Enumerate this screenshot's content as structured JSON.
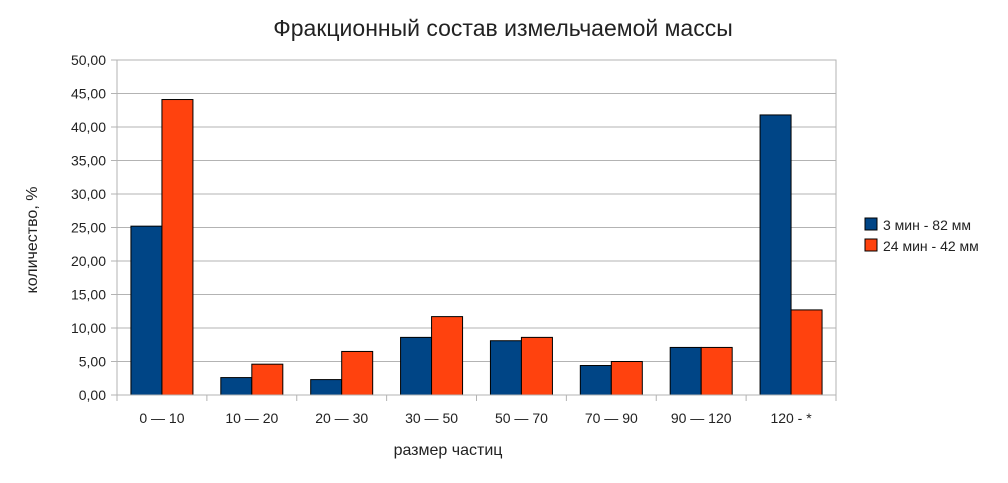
{
  "chart_data": {
    "type": "bar",
    "title": "Фракционный состав измельчаемой массы",
    "xlabel": "размер частиц",
    "ylabel": "количество, %",
    "categories": [
      "0 — 10",
      "10 — 20",
      "20 — 30",
      "30 — 50",
      "50 — 70",
      "70 — 90",
      "90 — 120",
      "120 - *"
    ],
    "ylim": [
      0,
      50
    ],
    "y_ticks": [
      "0,00",
      "5,00",
      "10,00",
      "15,00",
      "20,00",
      "25,00",
      "30,00",
      "35,00",
      "40,00",
      "45,00",
      "50,00"
    ],
    "grid": "horizontal",
    "legend_position": "right",
    "series": [
      {
        "name": "3 мин - 82 мм",
        "color": "#004586",
        "values": [
          25.2,
          2.6,
          2.3,
          8.6,
          8.1,
          4.4,
          7.1,
          41.8
        ]
      },
      {
        "name": "24 мин - 42 мм",
        "color": "#ff420e",
        "values": [
          44.1,
          4.6,
          6.5,
          11.7,
          8.6,
          5.0,
          7.1,
          12.7
        ]
      }
    ]
  }
}
